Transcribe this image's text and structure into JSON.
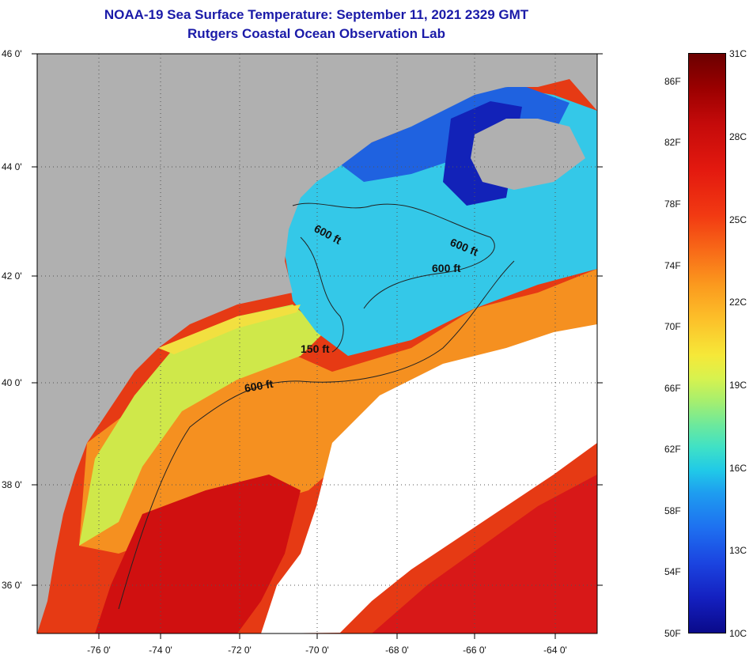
{
  "title": {
    "line1": "NOAA-19 Sea Surface Temperature:  September 11, 2021 2329 GMT",
    "line2": "Rutgers Coastal Ocean Observation Lab"
  },
  "axes": {
    "lat_labels": [
      "46 0'",
      "44 0'",
      "42 0'",
      "40 0'",
      "38 0'",
      "36 0'"
    ],
    "lon_labels": [
      "-76 0'",
      "-74 0'",
      "-72 0'",
      "-70 0'",
      "-68 0'",
      "-66 0'",
      "-64 0'"
    ]
  },
  "contours": {
    "c600_a": "600 ft",
    "c600_b": "600 ft",
    "c600_c": "600 ft",
    "c150": "150 ft",
    "c600_d": "600 ft"
  },
  "colorbar": {
    "fahrenheit": [
      "86F",
      "82F",
      "78F",
      "74F",
      "70F",
      "66F",
      "62F",
      "58F",
      "54F",
      "50F"
    ],
    "celsius": [
      "31C",
      "28C",
      "25C",
      "22C",
      "19C",
      "16C",
      "13C",
      "10C"
    ]
  },
  "colors": {
    "land": "#b0b0b0",
    "cloud": "#ffffff",
    "title": "#1a1aa8"
  }
}
